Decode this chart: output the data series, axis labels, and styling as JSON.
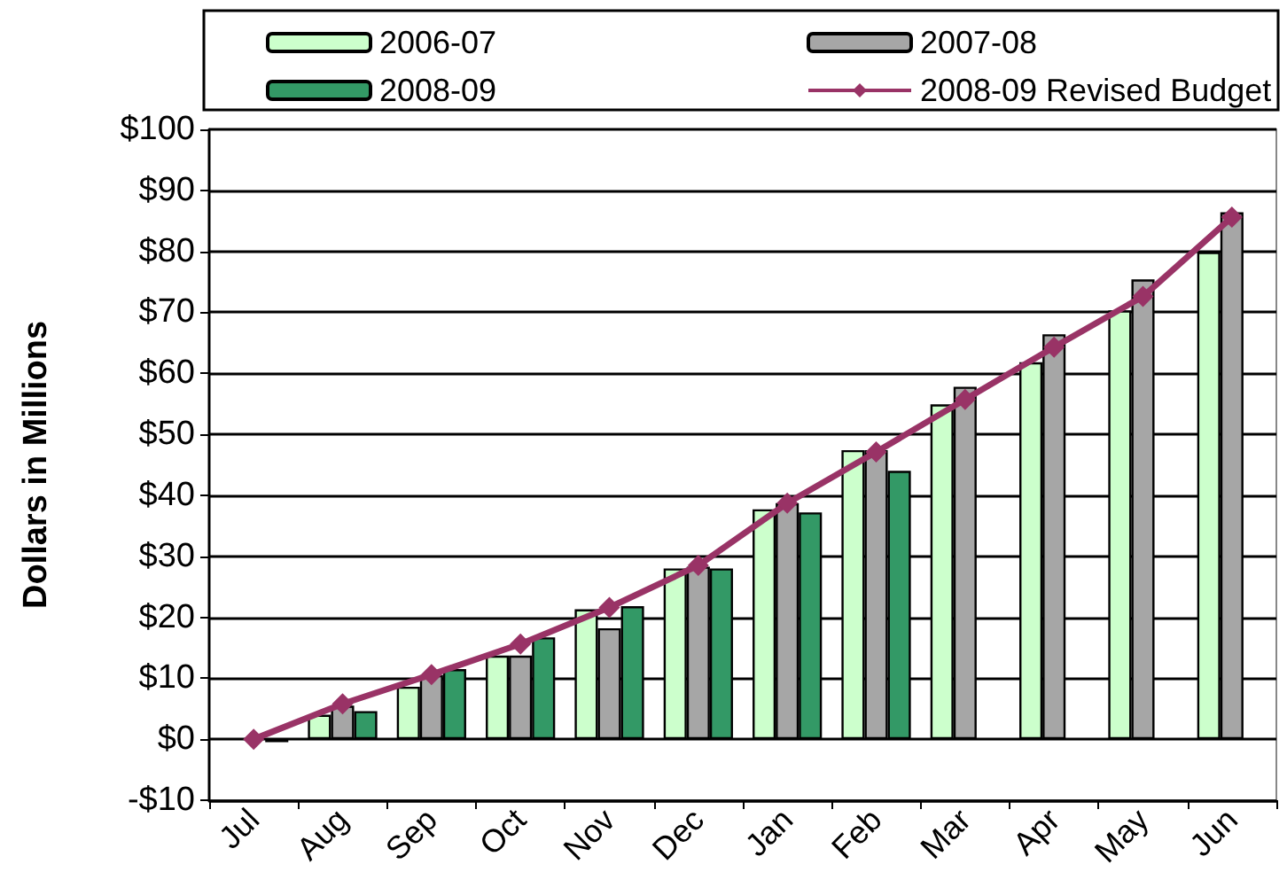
{
  "chart_data": {
    "type": "bar",
    "ylabel": "Dollars in Millions",
    "categories": [
      "Jul",
      "Aug",
      "Sep",
      "Oct",
      "Nov",
      "Dec",
      "Jan",
      "Feb",
      "Mar",
      "Apr",
      "May",
      "Jun"
    ],
    "series": [
      {
        "name": "2006-07",
        "color": "#ccffcc",
        "values": [
          null,
          4.0,
          8.6,
          13.7,
          21.3,
          28.0,
          37.7,
          47.4,
          54.9,
          61.8,
          70.3,
          79.9
        ]
      },
      {
        "name": "2007-08",
        "color": "#a6a6a6",
        "values": [
          null,
          5.5,
          10.5,
          13.7,
          18.2,
          28.3,
          38.7,
          47.4,
          57.8,
          66.4,
          75.4,
          86.4
        ]
      },
      {
        "name": "2008-09",
        "color": "#339966",
        "values": [
          -0.5,
          4.6,
          11.5,
          16.7,
          21.8,
          28.0,
          37.2,
          44.0,
          null,
          null,
          null,
          null
        ]
      },
      {
        "name": "2008-09 Revised Budget",
        "type": "line",
        "color": "#993366",
        "marker": "diamond",
        "values": [
          0,
          5.8,
          10.6,
          15.6,
          21.6,
          28.5,
          38.7,
          47.1,
          55.7,
          64.3,
          72.6,
          85.6
        ]
      }
    ],
    "ylim": [
      -10,
      100
    ],
    "yticks": [
      {
        "value": -10,
        "label": "-$10"
      },
      {
        "value": 0,
        "label": "$0"
      },
      {
        "value": 10,
        "label": "$10"
      },
      {
        "value": 20,
        "label": "$20"
      },
      {
        "value": 30,
        "label": "$30"
      },
      {
        "value": 40,
        "label": "$40"
      },
      {
        "value": 50,
        "label": "$50"
      },
      {
        "value": 60,
        "label": "$60"
      },
      {
        "value": 70,
        "label": "$70"
      },
      {
        "value": 80,
        "label": "$80"
      },
      {
        "value": 90,
        "label": "$90"
      },
      {
        "value": 100,
        "label": "$100"
      }
    ],
    "grid": "y",
    "legend": "top"
  }
}
